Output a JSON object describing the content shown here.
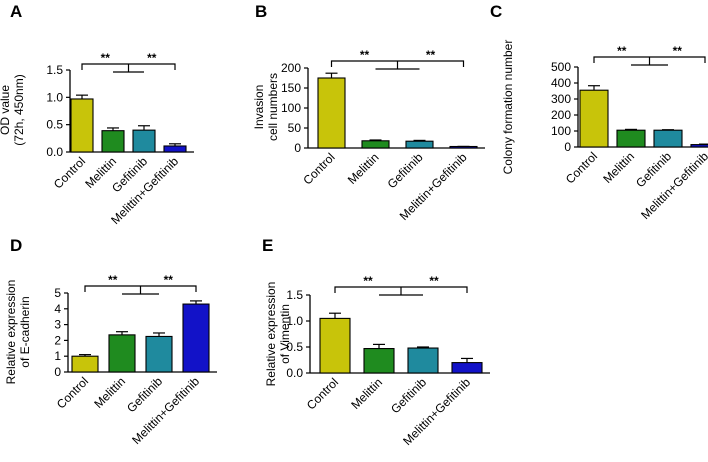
{
  "figure": {
    "description_free": true
  },
  "colors": {
    "control": "#c8c40a",
    "melittin": "#1f8b1f",
    "gefitinib": "#1f8a9e",
    "combo": "#1212c8",
    "axis": "#000000"
  },
  "chart_data": [
    {
      "type": "bar",
      "panel_label": "A",
      "title": "",
      "ylabel_lines": [
        "OD value",
        "(72h, 450nm)"
      ],
      "categories": [
        "Control",
        "Melittin",
        "Gefitinib",
        "Melittin+Gefitinib"
      ],
      "values": [
        0.97,
        0.39,
        0.4,
        0.11
      ],
      "errors": [
        0.07,
        0.05,
        0.08,
        0.04
      ],
      "ylim": [
        0,
        1.5
      ],
      "yticks": [
        0.0,
        0.5,
        1.0,
        1.5
      ],
      "ytick_labels": [
        "0.0",
        "0.5",
        "1.0",
        "1.5"
      ],
      "significance": [
        "**",
        "**"
      ]
    },
    {
      "type": "bar",
      "panel_label": "B",
      "title": "",
      "ylabel_lines": [
        "Invasion",
        "cell numbers"
      ],
      "categories": [
        "Control",
        "Melittin",
        "Gefitinib",
        "Melittin+Gefitinib"
      ],
      "values": [
        175,
        18,
        17,
        3
      ],
      "errors": [
        12,
        2,
        2,
        1
      ],
      "ylim": [
        0,
        200
      ],
      "yticks": [
        0,
        50,
        100,
        150,
        200
      ],
      "ytick_labels": [
        "0",
        "50",
        "100",
        "150",
        "200"
      ],
      "significance": [
        "**",
        "**"
      ]
    },
    {
      "type": "bar",
      "panel_label": "C",
      "title": "",
      "ylabel_lines": [
        "Colony formation number"
      ],
      "categories": [
        "Control",
        "Melittin",
        "Gefitinib",
        "Melittin+Gefitinib"
      ],
      "values": [
        355,
        105,
        105,
        15
      ],
      "errors": [
        28,
        5,
        3,
        3
      ],
      "ylim": [
        0,
        500
      ],
      "yticks": [
        0,
        100,
        200,
        300,
        400,
        500
      ],
      "ytick_labels": [
        "0",
        "100",
        "200",
        "300",
        "400",
        "500"
      ],
      "significance": [
        "**",
        "**"
      ]
    },
    {
      "type": "bar",
      "panel_label": "D",
      "title": "",
      "ylabel_lines": [
        "Relative expression",
        "of E-cadherin"
      ],
      "categories": [
        "Control",
        "Melittin",
        "Gefitinib",
        "Melittin+Gefitinib"
      ],
      "values": [
        1.0,
        2.35,
        2.25,
        4.3
      ],
      "errors": [
        0.1,
        0.2,
        0.22,
        0.2
      ],
      "ylim": [
        0,
        5
      ],
      "yticks": [
        0,
        1,
        2,
        3,
        4,
        5
      ],
      "ytick_labels": [
        "0",
        "1",
        "2",
        "3",
        "4",
        "5"
      ],
      "significance": [
        "**",
        "**"
      ]
    },
    {
      "type": "bar",
      "panel_label": "E",
      "title": "",
      "ylabel_lines": [
        "Relative expression",
        "of Vimentin"
      ],
      "categories": [
        "Control",
        "Melittin",
        "Gefitinib",
        "Melittin+Gefitinib"
      ],
      "values": [
        1.05,
        0.47,
        0.48,
        0.2
      ],
      "errors": [
        0.1,
        0.08,
        0.02,
        0.08
      ],
      "ylim": [
        0,
        1.5
      ],
      "yticks": [
        0.0,
        0.5,
        1.0,
        1.5
      ],
      "ytick_labels": [
        "0.0",
        "0.5",
        "1.0",
        "1.5"
      ],
      "significance": [
        "**",
        "**"
      ]
    }
  ]
}
